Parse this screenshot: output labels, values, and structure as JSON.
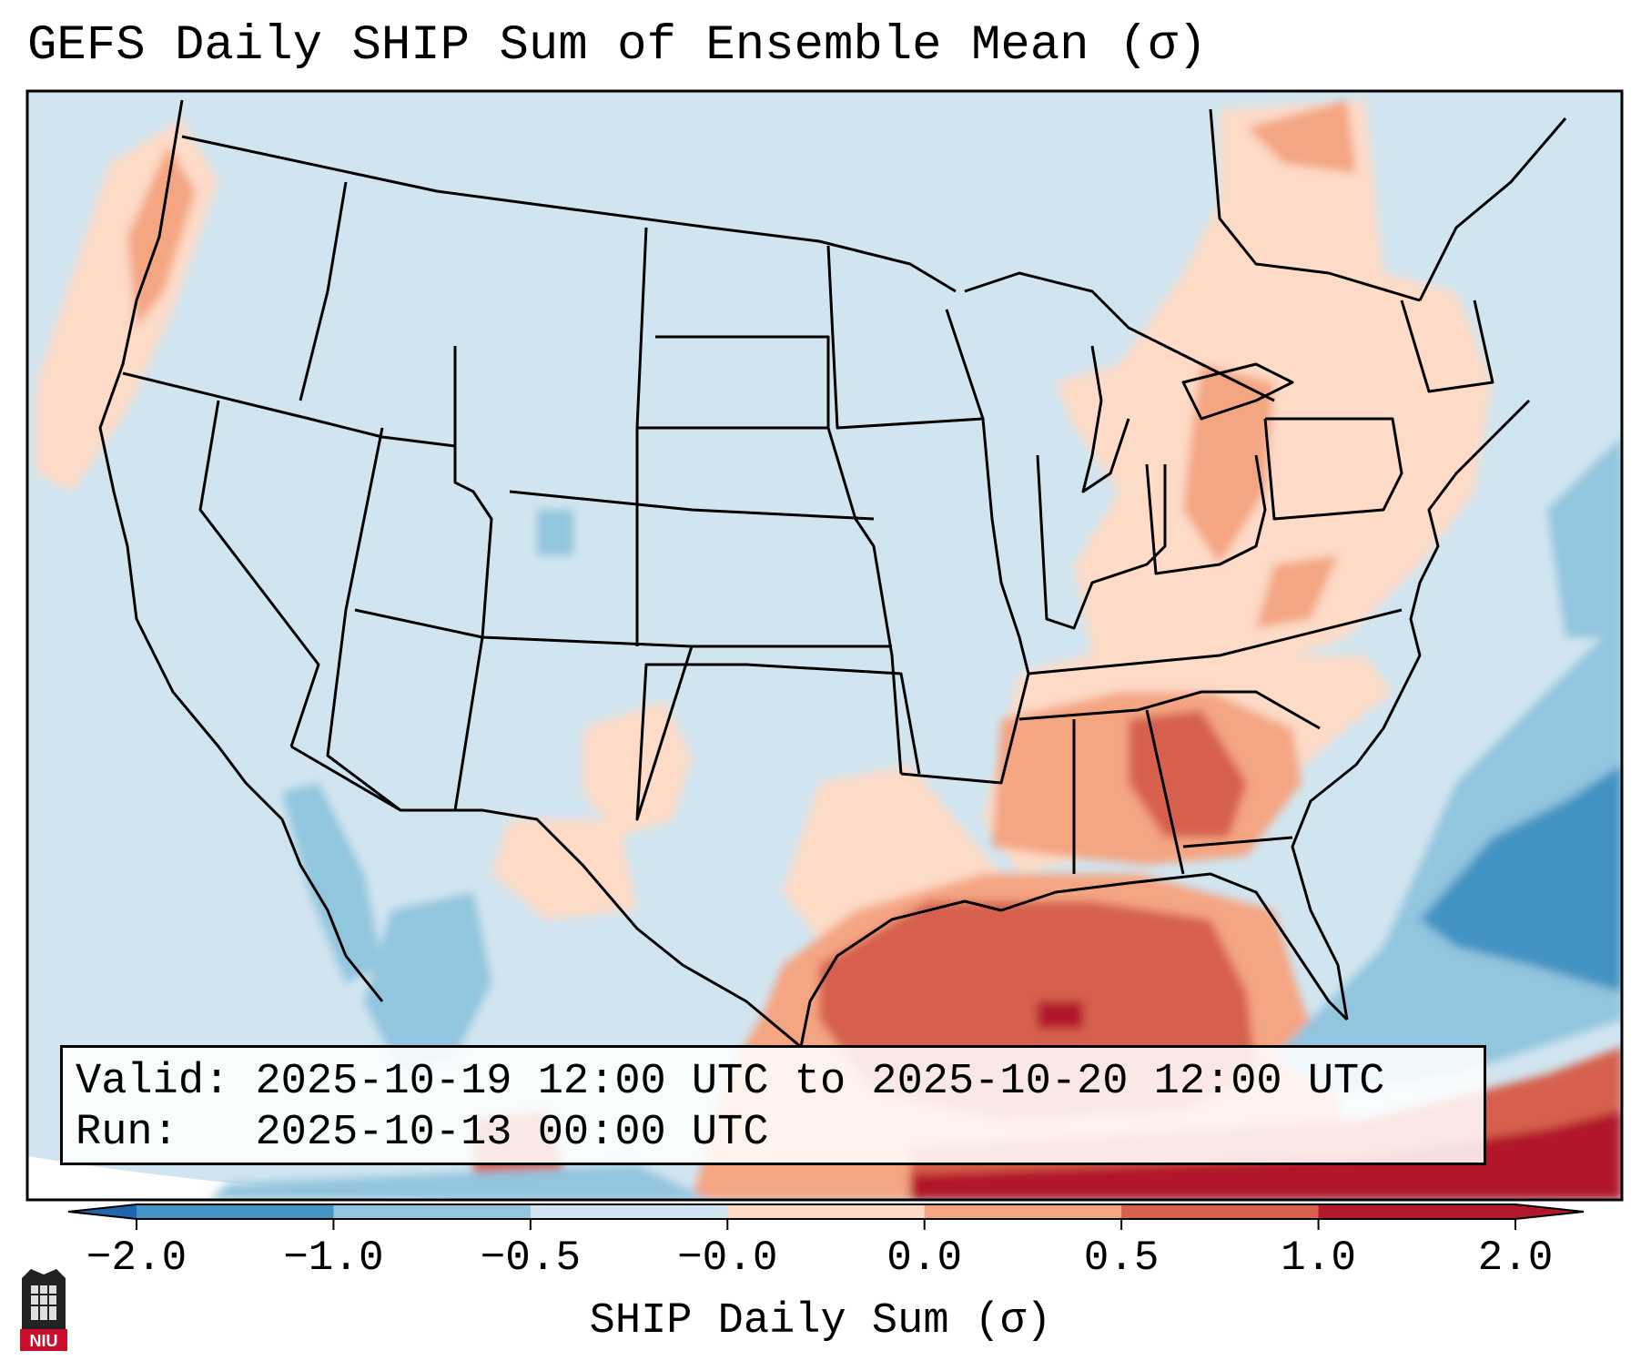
{
  "title": "GEFS Daily SHIP Sum of Ensemble Mean (σ)",
  "info": {
    "valid_label": "Valid:",
    "valid_value": "2025-10-19 12:00 UTC to 2025-10-20 12:00 UTC",
    "run_label": "Run:",
    "run_value": "2025-10-13 00:00 UTC"
  },
  "colorbar": {
    "label": "SHIP Daily Sum (σ)",
    "ticks": [
      "−2.0",
      "−1.0",
      "−0.5",
      "−0.0",
      "0.0",
      "0.5",
      "1.0",
      "2.0"
    ],
    "colors": [
      "#4393c3",
      "#92c5de",
      "#d1e5f0",
      "#fddbc7",
      "#f4a582",
      "#d6604d",
      "#b2182b"
    ],
    "extend": "both"
  },
  "logo": {
    "text": "NIU"
  }
}
